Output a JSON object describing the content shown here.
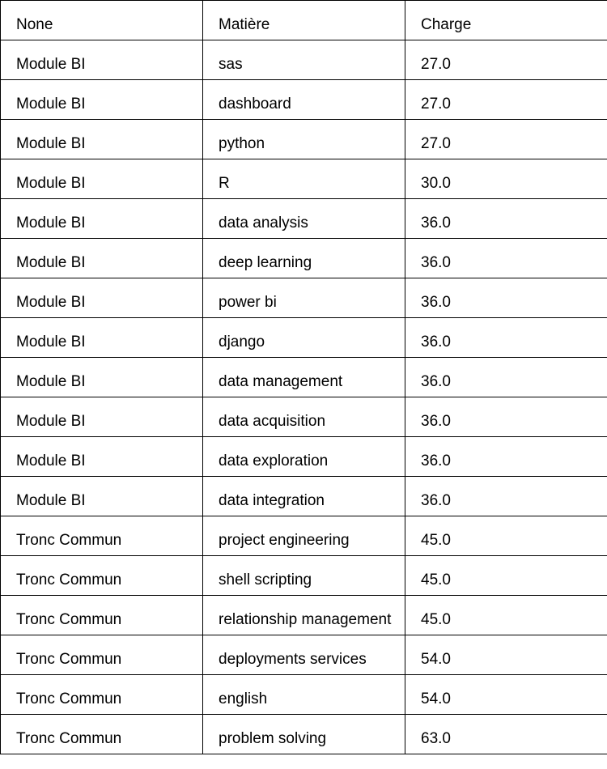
{
  "table": {
    "headers": [
      "None",
      "Matière",
      "Charge"
    ],
    "rows": [
      [
        "Module BI",
        "sas",
        "27.0"
      ],
      [
        "Module BI",
        "dashboard",
        "27.0"
      ],
      [
        "Module BI",
        "python",
        "27.0"
      ],
      [
        "Module BI",
        "R",
        "30.0"
      ],
      [
        "Module BI",
        "data analysis",
        "36.0"
      ],
      [
        "Module BI",
        "deep learning",
        "36.0"
      ],
      [
        "Module BI",
        "power bi",
        "36.0"
      ],
      [
        "Module BI",
        "django",
        "36.0"
      ],
      [
        "Module BI",
        "data management",
        "36.0"
      ],
      [
        "Module BI",
        "data acquisition",
        "36.0"
      ],
      [
        "Module BI",
        "data exploration",
        "36.0"
      ],
      [
        "Module BI",
        "data integration",
        "36.0"
      ],
      [
        "Tronc Commun",
        "project engineering",
        "45.0"
      ],
      [
        "Tronc Commun",
        "shell scripting",
        "45.0"
      ],
      [
        "Tronc Commun",
        "relationship management",
        "45.0"
      ],
      [
        "Tronc Commun",
        "deployments services",
        "54.0"
      ],
      [
        "Tronc Commun",
        "english",
        "54.0"
      ],
      [
        "Tronc Commun",
        "problem solving",
        "63.0"
      ]
    ]
  }
}
